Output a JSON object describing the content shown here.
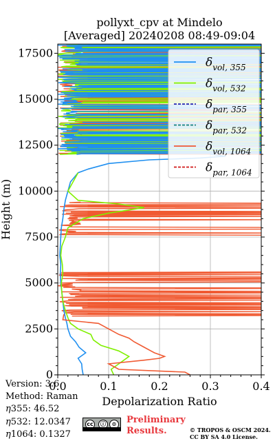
{
  "chart_data": {
    "type": "line",
    "title_line1": "pollyxt_cpv at Mindelo",
    "title_line2": "[Averaged] 20240208 08:49-09:04",
    "xlabel": "Depolarization Ratio",
    "ylabel": "Height (m)",
    "xlim": [
      0.0,
      0.4
    ],
    "ylim": [
      0,
      18000
    ],
    "xticks": [
      "0.0",
      "0.1",
      "0.2",
      "0.3",
      "0.4"
    ],
    "yticks": [
      "0",
      "2500",
      "5000",
      "7500",
      "10000",
      "12500",
      "15000",
      "17500"
    ],
    "grid": true,
    "legend_position": "top-right",
    "legend": [
      {
        "base": "δ",
        "sub": "vol, 355",
        "color": "#1f8ff0",
        "dash": "solid"
      },
      {
        "base": "δ",
        "sub": "vol, 532",
        "color": "#80f000",
        "dash": "solid"
      },
      {
        "base": "δ",
        "sub": "par, 355",
        "color": "#2020b0",
        "dash": "dashed"
      },
      {
        "base": "δ",
        "sub": "par, 532",
        "color": "#108080",
        "dash": "dashed"
      },
      {
        "base": "δ",
        "sub": "vol, 1064",
        "color": "#f05a32",
        "dash": "solid"
      },
      {
        "base": "δ",
        "sub": "par, 1064",
        "color": "#d01818",
        "dash": "dashed"
      }
    ],
    "series": [
      {
        "name": "δ vol, 355",
        "color": "#1f8ff0",
        "points": [
          [
            0.05,
            0
          ],
          [
            0.048,
            300
          ],
          [
            0.047,
            600
          ],
          [
            0.04,
            900
          ],
          [
            0.055,
            1200
          ],
          [
            0.042,
            1500
          ],
          [
            0.035,
            1800
          ],
          [
            0.025,
            2100
          ],
          [
            0.02,
            2500
          ],
          [
            0.018,
            2800
          ],
          [
            0.015,
            3100
          ],
          [
            0.012,
            3500
          ],
          [
            0.01,
            4000
          ],
          [
            0.008,
            4500
          ],
          [
            0.006,
            5000
          ],
          [
            0.005,
            5500
          ],
          [
            0.006,
            6000
          ],
          [
            0.004,
            6500
          ],
          [
            0.005,
            7000
          ],
          [
            0.006,
            7500
          ],
          [
            0.007,
            8000
          ],
          [
            0.01,
            8500
          ],
          [
            0.012,
            9000
          ],
          [
            0.015,
            9500
          ],
          [
            0.02,
            10000
          ],
          [
            0.025,
            10500
          ],
          [
            0.04,
            11000
          ],
          [
            0.06,
            11200
          ],
          [
            0.1,
            11500
          ],
          [
            0.18,
            11700
          ],
          [
            0.28,
            11800
          ],
          [
            0.33,
            11900
          ],
          [
            0.3,
            12000
          ]
        ]
      },
      {
        "name": "δ vol, 532",
        "color": "#80f000",
        "points": [
          [
            0.11,
            0
          ],
          [
            0.105,
            300
          ],
          [
            0.12,
            600
          ],
          [
            0.13,
            800
          ],
          [
            0.14,
            1000
          ],
          [
            0.12,
            1300
          ],
          [
            0.085,
            1600
          ],
          [
            0.07,
            1900
          ],
          [
            0.065,
            2200
          ],
          [
            0.04,
            2500
          ],
          [
            0.025,
            2800
          ],
          [
            0.02,
            3100
          ],
          [
            0.015,
            3500
          ],
          [
            0.01,
            4000
          ],
          [
            0.008,
            4500
          ],
          [
            0.007,
            5000
          ],
          [
            0.01,
            5500
          ],
          [
            0.009,
            6000
          ],
          [
            0.006,
            6500
          ],
          [
            0.008,
            7000
          ],
          [
            0.015,
            7500
          ],
          [
            0.02,
            8000
          ],
          [
            0.05,
            8500
          ],
          [
            0.1,
            8800
          ],
          [
            0.17,
            9100
          ],
          [
            0.12,
            9300
          ],
          [
            0.04,
            9500
          ],
          [
            0.02,
            10000
          ],
          [
            0.03,
            10500
          ],
          [
            0.04,
            11000
          ]
        ]
      },
      {
        "name": "δ vol, 1064",
        "color": "#f05a32",
        "points": [
          [
            0.26,
            0
          ],
          [
            0.25,
            150
          ],
          [
            0.12,
            300
          ],
          [
            0.1,
            600
          ],
          [
            0.17,
            800
          ],
          [
            0.2,
            900
          ],
          [
            0.21,
            1000
          ],
          [
            0.19,
            1200
          ],
          [
            0.17,
            1500
          ],
          [
            0.15,
            1800
          ],
          [
            0.14,
            2000
          ],
          [
            0.12,
            2200
          ],
          [
            0.1,
            2500
          ],
          [
            0.08,
            2800
          ],
          [
            0.01,
            3000
          ],
          [
            0.012,
            3300
          ]
        ]
      }
    ],
    "noise_bands": {
      "vol_1064": [
        [
          3200,
          5600
        ],
        [
          7600,
          9400
        ],
        [
          12000,
          18000
        ]
      ],
      "vol_532": [
        [
          12000,
          18000
        ]
      ],
      "vol_355": [
        [
          12000,
          18000
        ]
      ]
    }
  },
  "footer": {
    "version": "Version: 3.6",
    "method": "Method: Raman",
    "eta355_label": "355:",
    "eta355_value": "46.52",
    "eta532_label": "532:",
    "eta532_value": "12.0347",
    "eta1064_label": "1064:",
    "eta1064_value": "0.1327",
    "eta_symbol": "η",
    "prelim_line1": "Preliminary",
    "prelim_line2": "Results.",
    "copyright_line1": "© TROPOS & OSCM 2024.",
    "copyright_line2": "CC BY SA 4.0 License.",
    "cc_icons": [
      "cc",
      "by",
      "sa"
    ],
    "cc_icon_glyphs": [
      "cc",
      "ⓘ",
      "⊙"
    ]
  }
}
